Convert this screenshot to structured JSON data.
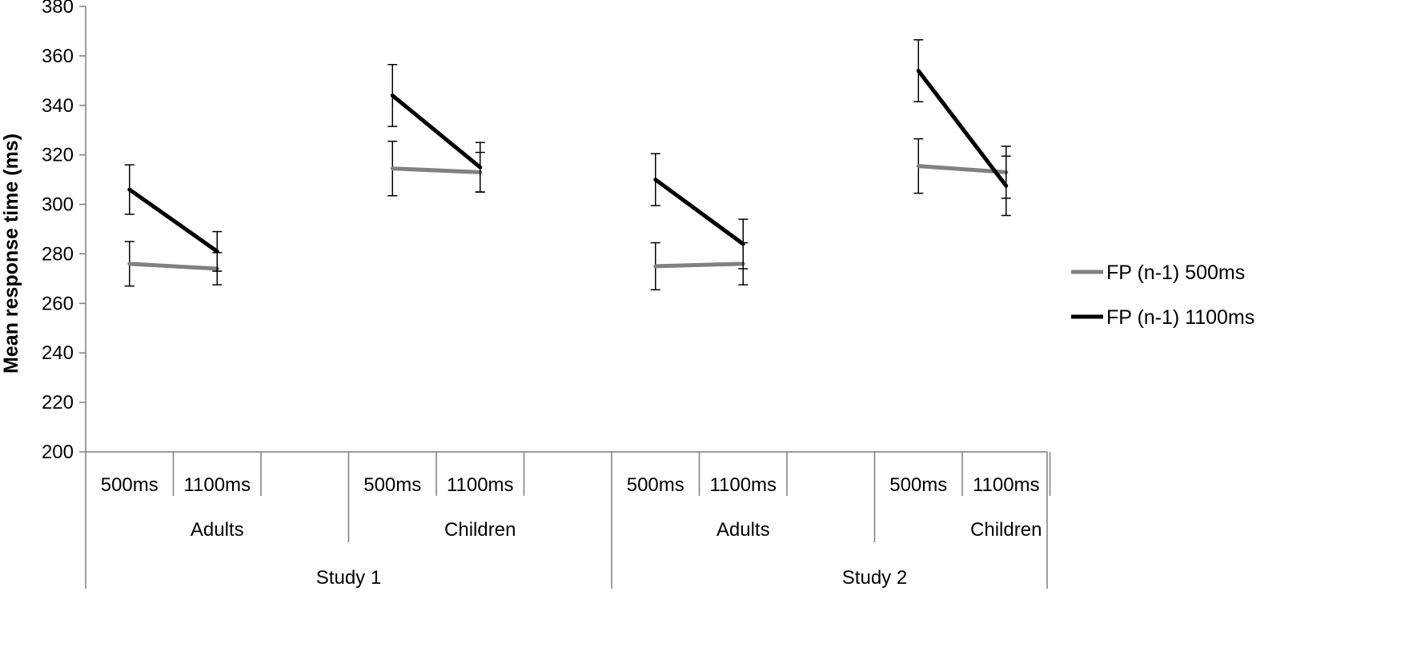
{
  "chart_data": {
    "type": "line",
    "ylabel": "Mean response time (ms)",
    "ylim": [
      200,
      380
    ],
    "yticks": [
      "200",
      "220",
      "240",
      "260",
      "280",
      "300",
      "320",
      "340",
      "360",
      "380"
    ],
    "grid": false,
    "legend_position": "right",
    "x_levels": {
      "fp_n": [
        "500ms",
        "1100ms"
      ],
      "group": [
        "Adults",
        "Children",
        "Adults",
        "Children"
      ],
      "study": [
        "Study 1",
        "Study 2"
      ]
    },
    "series": [
      {
        "name": "FP (n-1) 500ms",
        "color": "#808080",
        "segments": [
          {
            "study": "Study 1",
            "group": "Adults",
            "values": [
              276,
              274
            ],
            "errors": [
              9,
              6.5
            ]
          },
          {
            "study": "Study 1",
            "group": "Children",
            "values": [
              314.5,
              313
            ],
            "errors": [
              11,
              8
            ]
          },
          {
            "study": "Study 2",
            "group": "Adults",
            "values": [
              275,
              276
            ],
            "errors": [
              9.5,
              8.5
            ]
          },
          {
            "study": "Study 2",
            "group": "Children",
            "values": [
              315.5,
              313
            ],
            "errors": [
              11,
              10.5
            ]
          }
        ]
      },
      {
        "name": "FP (n-1) 1100ms",
        "color": "#000000",
        "segments": [
          {
            "study": "Study 1",
            "group": "Adults",
            "values": [
              306,
              281
            ],
            "errors": [
              10,
              8
            ]
          },
          {
            "study": "Study 1",
            "group": "Children",
            "values": [
              344,
              315
            ],
            "errors": [
              12.5,
              10
            ]
          },
          {
            "study": "Study 2",
            "group": "Adults",
            "values": [
              310,
              284
            ],
            "errors": [
              10.5,
              10
            ]
          },
          {
            "study": "Study 2",
            "group": "Children",
            "values": [
              354,
              307.5
            ],
            "errors": [
              12.5,
              12
            ]
          }
        ]
      }
    ]
  }
}
